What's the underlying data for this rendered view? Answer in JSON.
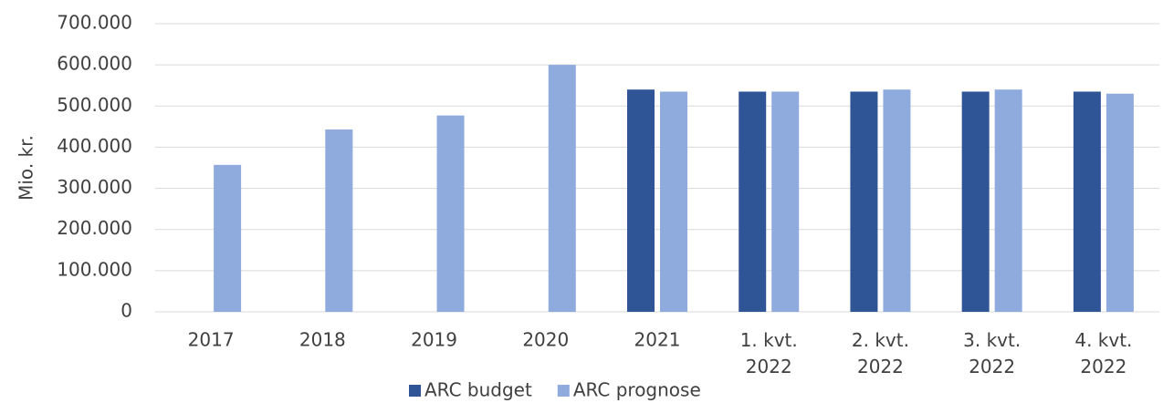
{
  "chart_data": {
    "type": "bar",
    "ylabel": "Mio. kr.",
    "categories": [
      "2017",
      "2018",
      "2019",
      "2020",
      "2021",
      "1. kvt. 2022",
      "2. kvt. 2022",
      "3. kvt. 2022",
      "4. kvt. 2022"
    ],
    "series": [
      {
        "name": "ARC budget",
        "color": "#2f5597",
        "values": [
          null,
          null,
          null,
          null,
          540000,
          535000,
          535000,
          535000,
          535000
        ]
      },
      {
        "name": "ARC prognose",
        "color": "#8faadc",
        "values": [
          357000,
          443000,
          477000,
          600000,
          535000,
          535000,
          540000,
          540000,
          530000
        ]
      }
    ],
    "ylim": [
      0,
      700000
    ],
    "yticks": [
      {
        "value": 0,
        "label": "0"
      },
      {
        "value": 100000,
        "label": "100.000"
      },
      {
        "value": 200000,
        "label": "200.000"
      },
      {
        "value": 300000,
        "label": "300.000"
      },
      {
        "value": 400000,
        "label": "400.000"
      },
      {
        "value": 500000,
        "label": "500.000"
      },
      {
        "value": 600000,
        "label": "600.000"
      },
      {
        "value": 700000,
        "label": "700.000"
      }
    ],
    "grid": true,
    "legend": "bottom"
  }
}
